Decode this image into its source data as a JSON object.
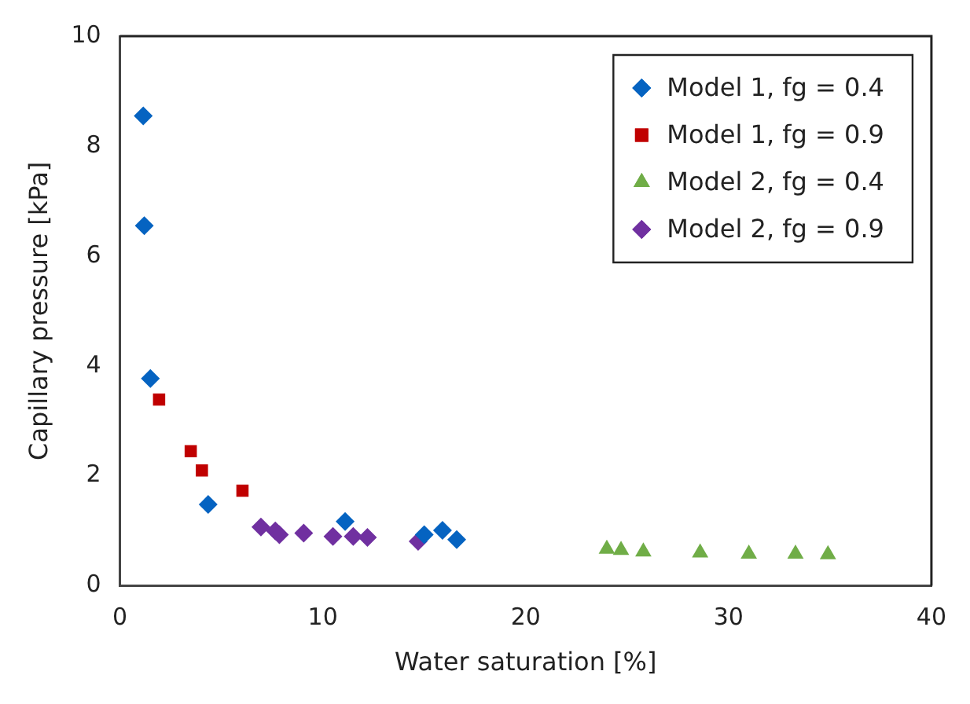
{
  "chart_data": {
    "type": "scatter",
    "xlabel": "Water saturation [%]",
    "ylabel": "Capillary pressure [kPa]",
    "xlim": [
      0,
      40
    ],
    "xticks": [
      0,
      10,
      20,
      30,
      40
    ],
    "ylim": [
      0,
      10
    ],
    "yticks": [
      0,
      2,
      4,
      6,
      8,
      10
    ],
    "grid": false,
    "legend": "top right",
    "series": [
      {
        "name": "Model 1, fg = 0.4",
        "color": "#0563c1",
        "marker": "diamond",
        "x": [
          1.15,
          1.2,
          1.5,
          4.35,
          11.1,
          15.0,
          15.9,
          16.6
        ],
        "values": [
          8.55,
          6.55,
          3.77,
          1.48,
          1.17,
          0.93,
          1.01,
          0.84
        ]
      },
      {
        "name": "Model 1, fg = 0.9",
        "color": "#c00000",
        "marker": "square",
        "x": [
          1.93,
          3.49,
          4.04,
          6.04
        ],
        "values": [
          3.39,
          2.45,
          2.1,
          1.73
        ]
      },
      {
        "name": "Model 2, fg = 0.4",
        "color": "#70ad47",
        "marker": "triangle",
        "x": [
          24.0,
          24.7,
          25.8,
          28.6,
          31.0,
          33.3,
          34.9
        ],
        "values": [
          0.67,
          0.65,
          0.62,
          0.6,
          0.58,
          0.58,
          0.57
        ]
      },
      {
        "name": "Model 2, fg = 0.9",
        "color": "#7030a0",
        "marker": "diamond",
        "x": [
          6.95,
          7.66,
          7.86,
          9.06,
          10.5,
          11.5,
          12.2,
          14.7
        ],
        "values": [
          1.07,
          1.0,
          0.93,
          0.96,
          0.9,
          0.9,
          0.88,
          0.81
        ]
      }
    ]
  }
}
